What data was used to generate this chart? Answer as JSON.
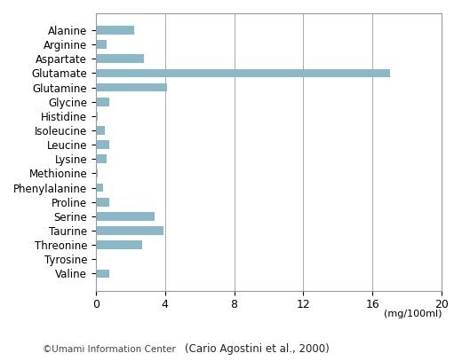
{
  "categories": [
    "Alanine",
    "Arginine",
    "Aspartate",
    "Glutamate",
    "Glutamine",
    "Glycine",
    "Histidine",
    "Isoleucine",
    "Leucine",
    "Lysine",
    "Methionine",
    "Phenylalanine",
    "Proline",
    "Serine",
    "Taurine",
    "Threonine",
    "Tyrosine",
    "Valine"
  ],
  "values": [
    2.2,
    0.6,
    2.8,
    17.0,
    4.1,
    0.8,
    0.1,
    0.5,
    0.8,
    0.6,
    0.1,
    0.4,
    0.8,
    3.4,
    3.9,
    2.7,
    0.05,
    0.8
  ],
  "bar_color": "#8ab8c8",
  "xlim": [
    0,
    20
  ],
  "xticks": [
    0,
    4,
    8,
    12,
    16,
    20
  ],
  "xlabel": "(mg/100ml)",
  "footer_left": "©Umami Information Center",
  "footer_right": "(Cario Agostini et al., 2000)",
  "background_color": "#ffffff",
  "grid_color": "#aaaaaa",
  "bar_height": 0.6
}
